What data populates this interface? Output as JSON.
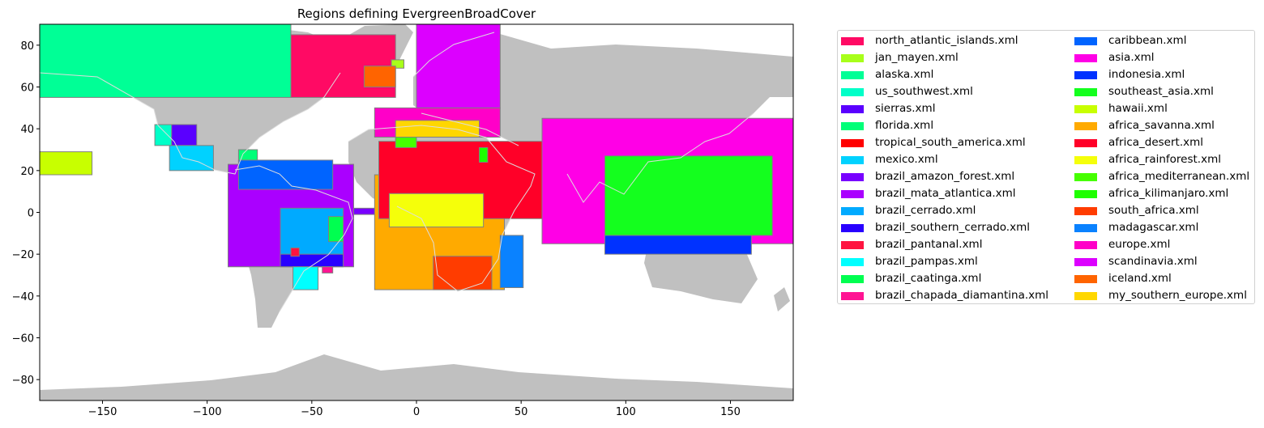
{
  "chart_data": {
    "type": "map",
    "title": "Regions defining EvergreenBroadCover",
    "xlim": [
      -180,
      180
    ],
    "ylim": [
      -90,
      90
    ],
    "xticks": [
      -150,
      -100,
      -50,
      0,
      50,
      100,
      150
    ],
    "yticks": [
      80,
      60,
      40,
      20,
      0,
      -20,
      -40,
      -60,
      -80
    ],
    "land_color": "#c0c0c0",
    "coastline_color": "#dddddd",
    "legend_location": "outside-right",
    "regions": [
      {
        "name": "north_atlantic_islands.xml",
        "color": "#ff0a64",
        "lon": [
          -60,
          -10
        ],
        "lat": [
          55,
          85
        ]
      },
      {
        "name": "jan_mayen.xml",
        "color": "#a8ff1a",
        "lon": [
          -12,
          -6
        ],
        "lat": [
          69,
          73
        ]
      },
      {
        "name": "alaska.xml",
        "color": "#00ff96",
        "lon": [
          -180,
          -60
        ],
        "lat": [
          55,
          90
        ]
      },
      {
        "name": "us_southwest.xml",
        "color": "#00ffc8",
        "lon": [
          -125,
          -115
        ],
        "lat": [
          32,
          42
        ]
      },
      {
        "name": "sierras.xml",
        "color": "#5a00ff",
        "lon": [
          -117,
          -105
        ],
        "lat": [
          32,
          42
        ]
      },
      {
        "name": "florida.xml",
        "color": "#00ff78",
        "lon": [
          -85,
          -76
        ],
        "lat": [
          24,
          30
        ]
      },
      {
        "name": "tropical_south_america.xml",
        "color": "#ff0000",
        "lon": [
          -90,
          -30
        ],
        "lat": [
          -26,
          -23
        ]
      },
      {
        "name": "mexico.xml",
        "color": "#00d2ff",
        "lon": [
          -118,
          -97
        ],
        "lat": [
          20,
          32
        ]
      },
      {
        "name": "brazil_amazon_forest.xml",
        "color": "#7800ff",
        "lon": [
          -60,
          -20
        ],
        "lat": [
          -1,
          2
        ]
      },
      {
        "name": "brazil_mata_atlantica.xml",
        "color": "#aa00ff",
        "lon": [
          -90,
          -30
        ],
        "lat": [
          -26,
          23
        ]
      },
      {
        "name": "brazil_cerrado.xml",
        "color": "#00aaff",
        "lon": [
          -65,
          -35
        ],
        "lat": [
          -26,
          2
        ]
      },
      {
        "name": "brazil_southern_cerrado.xml",
        "color": "#2800ff",
        "lon": [
          -65,
          -35
        ],
        "lat": [
          -26,
          -20
        ]
      },
      {
        "name": "brazil_pantanal.xml",
        "color": "#ff1440",
        "lon": [
          -60,
          -56
        ],
        "lat": [
          -21,
          -17
        ]
      },
      {
        "name": "brazil_pampas.xml",
        "color": "#00ffff",
        "lon": [
          -59,
          -47
        ],
        "lat": [
          -37,
          -26
        ]
      },
      {
        "name": "brazil_caatinga.xml",
        "color": "#00ff50",
        "lon": [
          -42,
          -35
        ],
        "lat": [
          -14,
          -2
        ]
      },
      {
        "name": "brazil_chapada_diamantina.xml",
        "color": "#ff1493",
        "lon": [
          -45,
          -40
        ],
        "lat": [
          -29,
          -26
        ]
      },
      {
        "name": "caribbean.xml",
        "color": "#0064ff",
        "lon": [
          -85,
          -40
        ],
        "lat": [
          11,
          25
        ]
      },
      {
        "name": "asia.xml",
        "color": "#ff00e6",
        "lon": [
          60,
          180
        ],
        "lat": [
          -15,
          45
        ]
      },
      {
        "name": "indonesia.xml",
        "color": "#0032ff",
        "lon": [
          90,
          160
        ],
        "lat": [
          -20,
          -11
        ]
      },
      {
        "name": "southeast_asia.xml",
        "color": "#14ff1e",
        "lon": [
          90,
          170
        ],
        "lat": [
          -11,
          27
        ]
      },
      {
        "name": "hawaii.xml",
        "color": "#c8ff00",
        "lon": [
          -180,
          -155
        ],
        "lat": [
          18,
          29
        ]
      },
      {
        "name": "africa_savanna.xml",
        "color": "#ffaa00",
        "lon": [
          -20,
          42
        ],
        "lat": [
          -37,
          18
        ]
      },
      {
        "name": "africa_desert.xml",
        "color": "#ff0028",
        "lon": [
          -18,
          60
        ],
        "lat": [
          -3,
          34
        ]
      },
      {
        "name": "africa_rainforest.xml",
        "color": "#f5ff0a",
        "lon": [
          -13,
          32
        ],
        "lat": [
          -7,
          9
        ]
      },
      {
        "name": "africa_mediterranean.xml",
        "color": "#46ff00",
        "lon": [
          -10,
          0
        ],
        "lat": [
          31,
          36
        ]
      },
      {
        "name": "africa_kilimanjaro.xml",
        "color": "#1eff00",
        "lon": [
          30,
          34
        ],
        "lat": [
          24,
          31
        ]
      },
      {
        "name": "south_africa.xml",
        "color": "#ff3c00",
        "lon": [
          8,
          36
        ],
        "lat": [
          -37,
          -21
        ]
      },
      {
        "name": "madagascar.xml",
        "color": "#0a82ff",
        "lon": [
          40,
          51
        ],
        "lat": [
          -36,
          -11
        ]
      },
      {
        "name": "europe.xml",
        "color": "#ff00c8",
        "lon": [
          -20,
          40
        ],
        "lat": [
          36,
          50
        ]
      },
      {
        "name": "scandinavia.xml",
        "color": "#dc00ff",
        "lon": [
          0,
          40
        ],
        "lat": [
          50,
          90
        ]
      },
      {
        "name": "iceland.xml",
        "color": "#ff6400",
        "lon": [
          -25,
          -10
        ],
        "lat": [
          60,
          70
        ]
      },
      {
        "name": "my_southern_europe.xml",
        "color": "#ffd700",
        "lon": [
          -10,
          30
        ],
        "lat": [
          36,
          44
        ]
      }
    ]
  }
}
